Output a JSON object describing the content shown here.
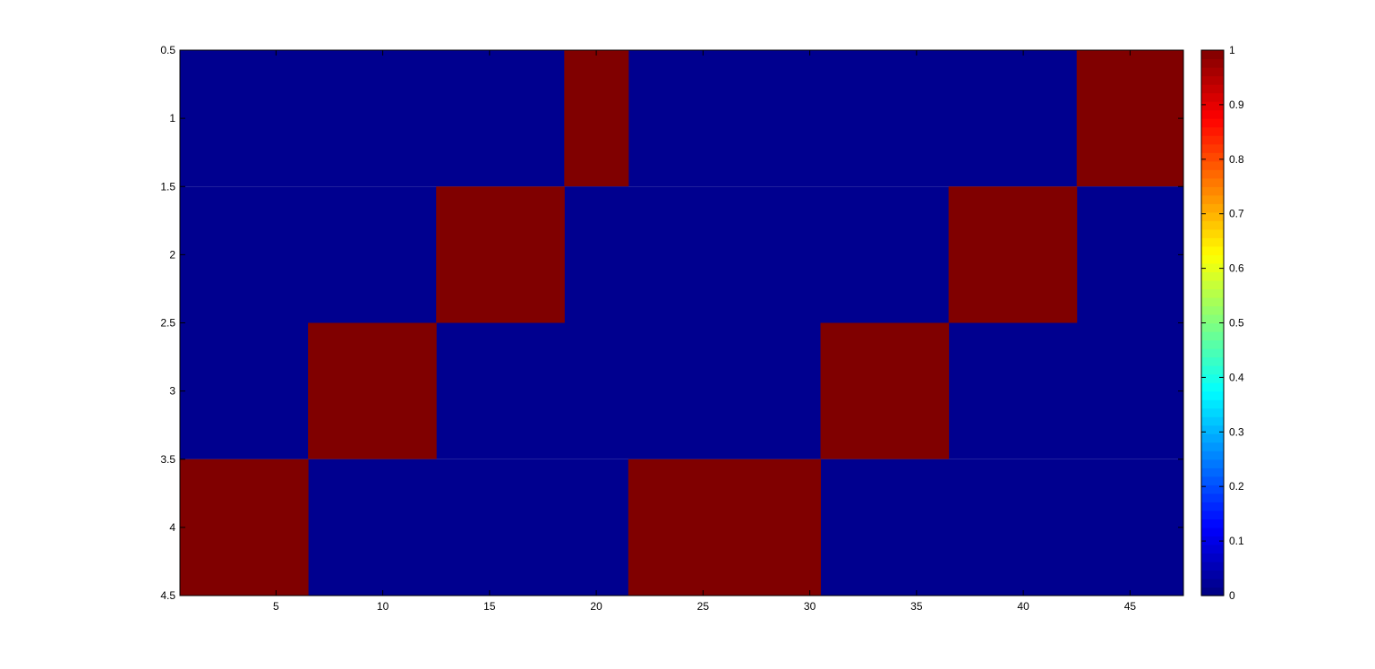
{
  "chart_data": {
    "type": "heatmap",
    "title": "",
    "xlabel": "",
    "ylabel": "",
    "x_range": [
      0.5,
      47.5
    ],
    "y_range": [
      0.5,
      4.5
    ],
    "x_ticks": [
      5,
      10,
      15,
      20,
      25,
      30,
      35,
      40,
      45
    ],
    "x_tick_labels": [
      "5",
      "10",
      "15",
      "20",
      "25",
      "30",
      "35",
      "40",
      "45"
    ],
    "y_ticks": [
      0.5,
      1,
      1.5,
      2,
      2.5,
      3,
      3.5,
      4,
      4.5
    ],
    "y_tick_labels": [
      "0.5",
      "1",
      "1.5",
      "2",
      "2.5",
      "3",
      "3.5",
      "4",
      "4.5"
    ],
    "rows": [
      1,
      2,
      3,
      4
    ],
    "row_high_column_ranges": [
      [
        [
          19,
          21
        ],
        [
          43,
          47
        ]
      ],
      [
        [
          13,
          18
        ],
        [
          37,
          42
        ]
      ],
      [
        [
          7,
          12
        ],
        [
          31,
          36
        ]
      ],
      [
        [
          1,
          6
        ],
        [
          22,
          30
        ]
      ]
    ],
    "value_low": 0,
    "value_high": 1,
    "colormap": "jet",
    "color_low": "#00008f",
    "color_high": "#800000",
    "colorbar": {
      "ticks": [
        0,
        0.1,
        0.2,
        0.3,
        0.4,
        0.5,
        0.6,
        0.7,
        0.8,
        0.9,
        1
      ],
      "tick_labels": [
        "0",
        "0.1",
        "0.2",
        "0.3",
        "0.4",
        "0.5",
        "0.6",
        "0.7",
        "0.8",
        "0.9",
        "1"
      ]
    }
  }
}
